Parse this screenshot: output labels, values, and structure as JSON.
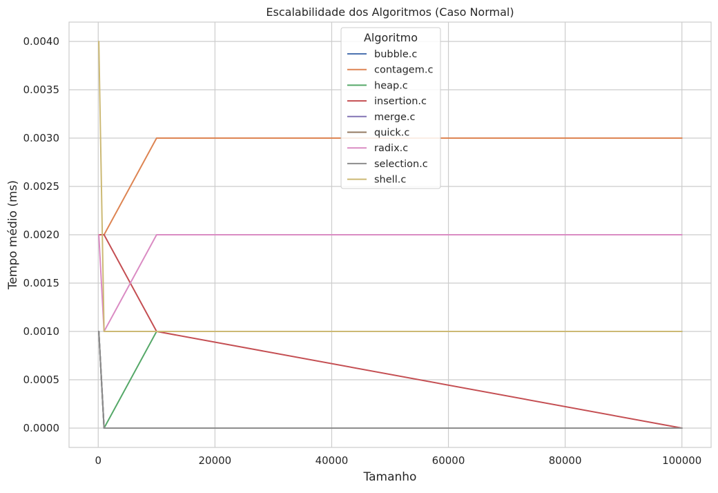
{
  "chart_data": {
    "type": "line",
    "title": "Escalabilidade dos Algoritmos (Caso Normal)",
    "xlabel": "Tamanho",
    "ylabel": "Tempo médio (ms)",
    "x": [
      100,
      1000,
      10000,
      100000
    ],
    "xlim": [
      -5000,
      105000
    ],
    "ylim": [
      -0.0002,
      0.0042
    ],
    "x_ticks": [
      0,
      20000,
      40000,
      60000,
      80000,
      100000
    ],
    "x_tick_labels": [
      "0",
      "20000",
      "40000",
      "60000",
      "80000",
      "100000"
    ],
    "y_ticks": [
      0,
      0.0005,
      0.001,
      0.0015,
      0.002,
      0.0025,
      0.003,
      0.0035,
      0.004
    ],
    "y_tick_labels": [
      "0.0000",
      "0.0005",
      "0.0010",
      "0.0015",
      "0.0020",
      "0.0025",
      "0.0030",
      "0.0035",
      "0.0040"
    ],
    "grid": true,
    "legend": {
      "title": "Algoritmo",
      "placement": "top-center"
    },
    "series": [
      {
        "name": "bubble.c",
        "color": "#4c72b0",
        "values": [
          0.001,
          0.0,
          0.0,
          0.0
        ]
      },
      {
        "name": "contagem.c",
        "color": "#dd8452",
        "values": [
          0.002,
          0.002,
          0.003,
          0.003
        ]
      },
      {
        "name": "heap.c",
        "color": "#55a868",
        "values": [
          0.001,
          0.0,
          0.001,
          0.001
        ]
      },
      {
        "name": "insertion.c",
        "color": "#c44e52",
        "values": [
          0.002,
          0.002,
          0.001,
          0.0
        ]
      },
      {
        "name": "merge.c",
        "color": "#8172b3",
        "values": [
          0.001,
          0.0,
          0.0,
          0.0
        ]
      },
      {
        "name": "quick.c",
        "color": "#937860",
        "values": [
          0.001,
          0.0,
          0.0,
          0.0
        ]
      },
      {
        "name": "radix.c",
        "color": "#da8bc3",
        "values": [
          0.002,
          0.001,
          0.002,
          0.002
        ]
      },
      {
        "name": "selection.c",
        "color": "#8c8c8c",
        "values": [
          0.001,
          0.0,
          0.0,
          0.0
        ]
      },
      {
        "name": "shell.c",
        "color": "#ccb974",
        "values": [
          0.004,
          0.001,
          0.001,
          0.001
        ]
      }
    ]
  }
}
